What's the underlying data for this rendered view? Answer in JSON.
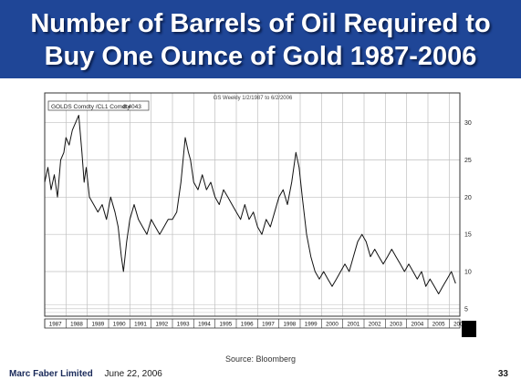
{
  "slide": {
    "title_line1": "Number of Barrels of Oil Required to",
    "title_line2": "Buy One Ounce of Gold 1987-2006",
    "source": "Source: Bloomberg",
    "author": "Marc Faber Limited",
    "date": "June 22, 2006",
    "page": "33"
  },
  "colors": {
    "header_bg": "#1f4697",
    "title_text": "#ffffff",
    "line": "#111111",
    "grid": "#bfbfbf"
  },
  "chart_data": {
    "type": "line",
    "top_label": "GS Weekly 1/2/1987 to 6/2/2006",
    "legend_text": "GOLDS Comdty /CL1 Comdty",
    "legend_value": "8.4043",
    "legend_placement": "top-left",
    "grid": true,
    "xlim": [
      1987,
      2006.5
    ],
    "ylim": [
      4,
      34
    ],
    "x_ticks": [
      "1987",
      "1988",
      "1989",
      "1990",
      "1991",
      "1992",
      "1993",
      "1994",
      "1995",
      "1996",
      "1997",
      "1998",
      "1999",
      "2000",
      "2001",
      "2002",
      "2003",
      "2004",
      "2005",
      "2006"
    ],
    "y_ticks": [
      5,
      10,
      15,
      20,
      25,
      30
    ],
    "series": [
      {
        "x": [
          1987.0,
          1987.15,
          1987.3,
          1987.45,
          1987.6,
          1987.75,
          1987.9,
          1988.0,
          1988.15,
          1988.3,
          1988.45,
          1988.6,
          1988.75,
          1988.85,
          1988.95,
          1989.1,
          1989.3,
          1989.5,
          1989.7,
          1989.9,
          1990.1,
          1990.3,
          1990.45,
          1990.6,
          1990.7,
          1990.85,
          1991.0,
          1991.2,
          1991.4,
          1991.6,
          1991.8,
          1992.0,
          1992.2,
          1992.4,
          1992.6,
          1992.8,
          1993.0,
          1993.2,
          1993.4,
          1993.6,
          1993.75,
          1993.85,
          1994.0,
          1994.2,
          1994.4,
          1994.6,
          1994.8,
          1995.0,
          1995.2,
          1995.4,
          1995.6,
          1995.8,
          1996.0,
          1996.2,
          1996.4,
          1996.6,
          1996.8,
          1997.0,
          1997.2,
          1997.4,
          1997.6,
          1997.8,
          1998.0,
          1998.2,
          1998.4,
          1998.6,
          1998.8,
          1998.95,
          1999.1,
          1999.3,
          1999.5,
          1999.7,
          1999.9,
          2000.1,
          2000.3,
          2000.5,
          2000.7,
          2000.9,
          2001.1,
          2001.3,
          2001.5,
          2001.7,
          2001.9,
          2002.1,
          2002.3,
          2002.5,
          2002.7,
          2002.9,
          2003.1,
          2003.3,
          2003.5,
          2003.7,
          2003.9,
          2004.1,
          2004.3,
          2004.5,
          2004.7,
          2004.9,
          2005.1,
          2005.3,
          2005.5,
          2005.7,
          2005.9,
          2006.1,
          2006.3
        ],
        "y": [
          22,
          24,
          21,
          23,
          20,
          25,
          26,
          28,
          27,
          29,
          30,
          31,
          26,
          22,
          24,
          20,
          19,
          18,
          19,
          17,
          20,
          18,
          16,
          12,
          10,
          14,
          17,
          19,
          17,
          16,
          15,
          17,
          16,
          15,
          16,
          17,
          17,
          18,
          22,
          28,
          26,
          25,
          22,
          21,
          23,
          21,
          22,
          20,
          19,
          21,
          20,
          19,
          18,
          17,
          19,
          17,
          18,
          16,
          15,
          17,
          16,
          18,
          20,
          21,
          19,
          22,
          26,
          24,
          20,
          15,
          12,
          10,
          9,
          10,
          9,
          8,
          9,
          10,
          11,
          10,
          12,
          14,
          15,
          14,
          12,
          13,
          12,
          11,
          12,
          13,
          12,
          11,
          10,
          11,
          10,
          9,
          10,
          8,
          9,
          8,
          7,
          8,
          9,
          10,
          8.4
        ]
      }
    ]
  }
}
